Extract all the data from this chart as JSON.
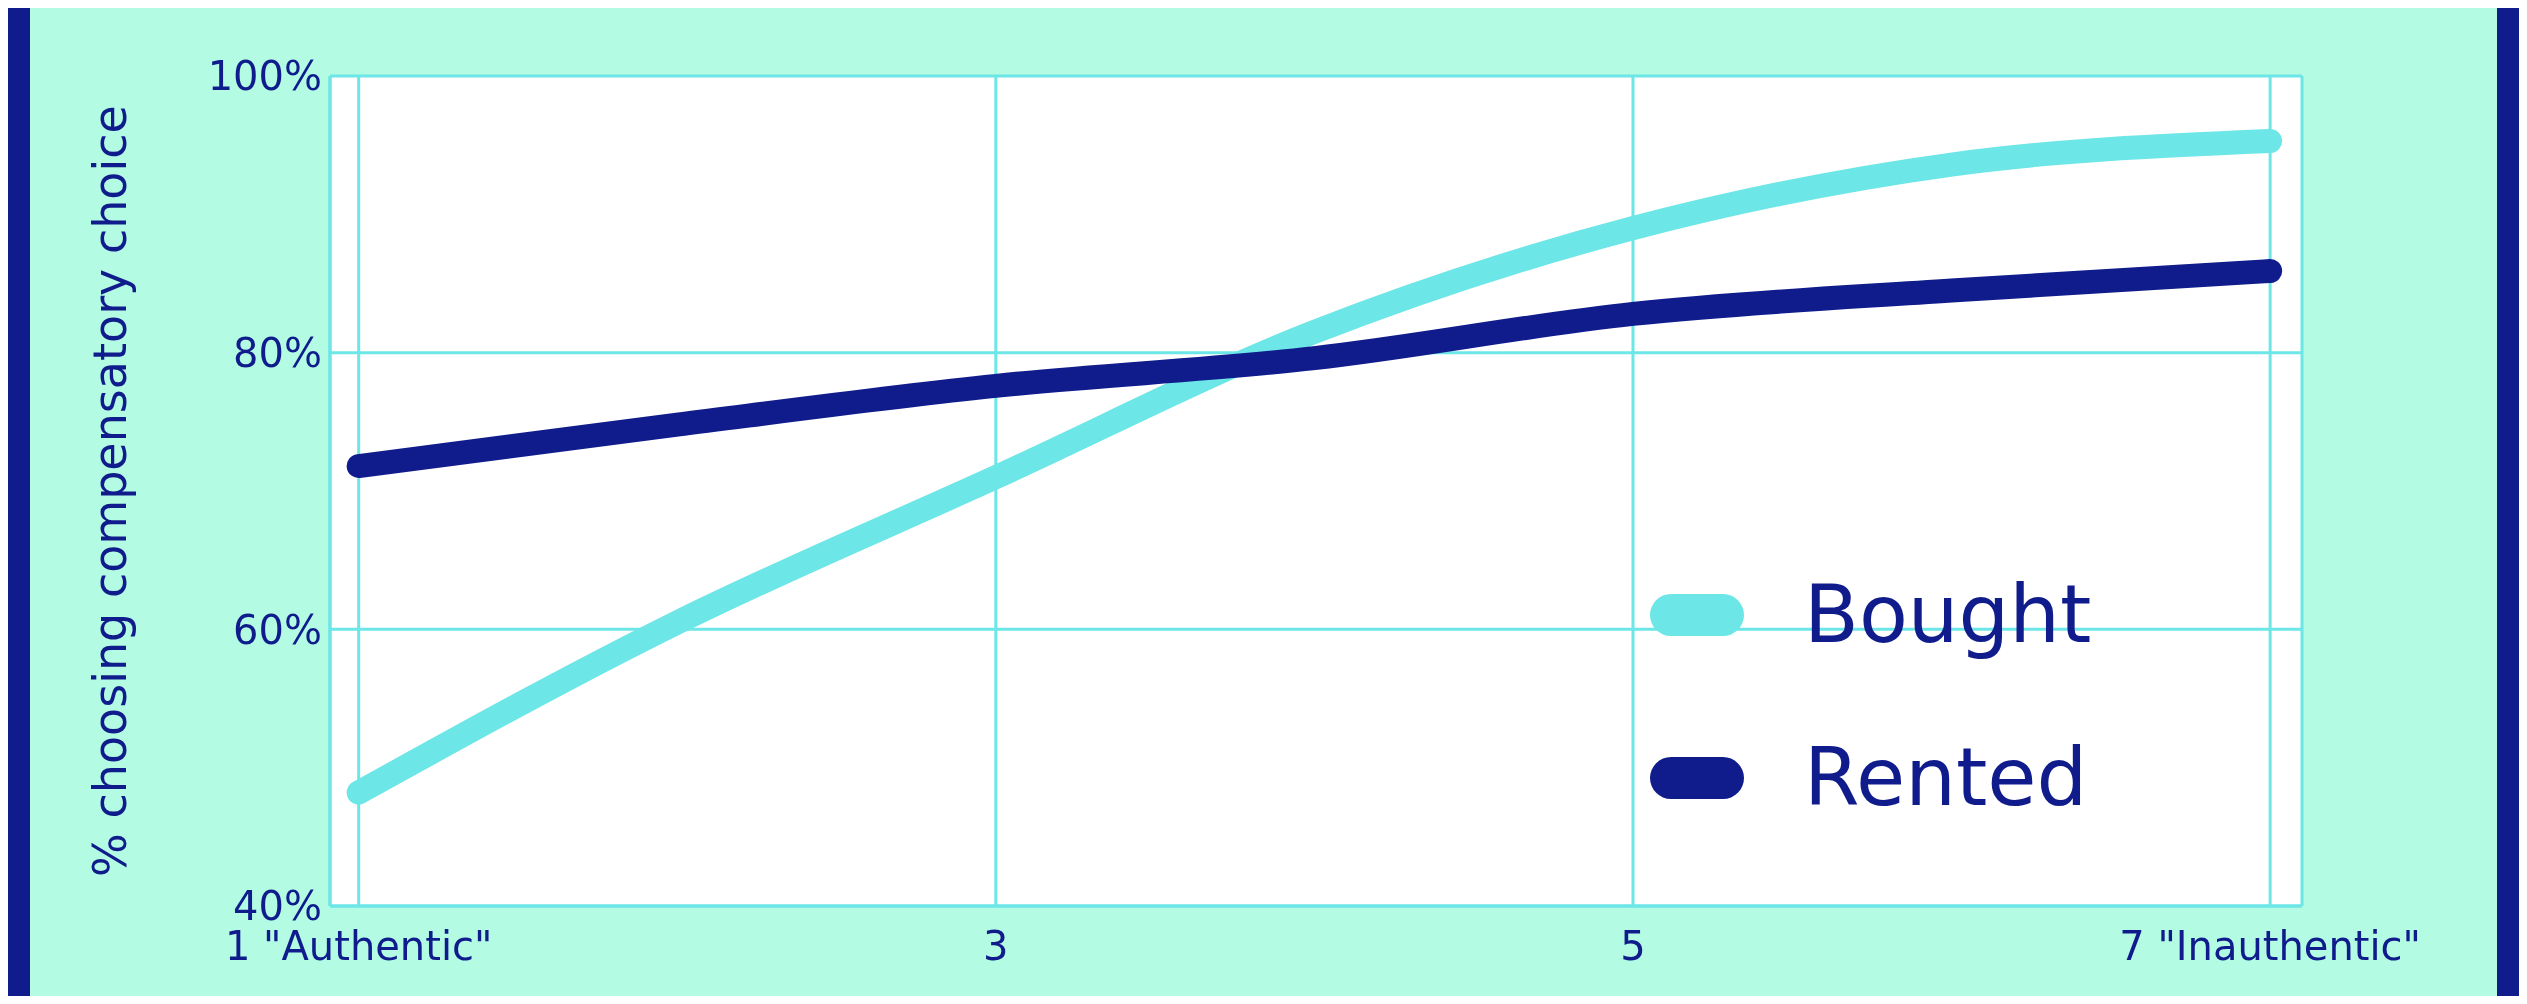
{
  "chart_data": {
    "type": "line",
    "ylabel": "% choosing compensatory choice",
    "x": [
      1,
      2,
      3,
      4,
      5,
      6,
      7
    ],
    "series": [
      {
        "name": "Bought",
        "color": "#6ce6e6",
        "values": [
          48.2,
          60.5,
          71,
          81.5,
          89,
          93.6,
          95.3
        ]
      },
      {
        "name": "Rented",
        "color": "#101c8c",
        "values": [
          71.8,
          74.8,
          77.6,
          79.6,
          82.8,
          84.5,
          85.9
        ]
      }
    ],
    "xlim": [
      0.91,
      7.1
    ],
    "xticks": [
      {
        "value": 1,
        "label": "1 \"Authentic\""
      },
      3,
      5,
      {
        "value": 7,
        "label": "7 \"Inauthentic\""
      }
    ],
    "ylim": [
      40,
      100
    ],
    "yticks": [
      {
        "value": 40,
        "label": "40%"
      },
      {
        "value": 60,
        "label": "60%"
      },
      {
        "value": 80,
        "label": "80%"
      },
      {
        "value": 100,
        "label": "100%"
      }
    ],
    "grid": true,
    "legend": "bottom right",
    "marker": "none",
    "line_style": "solid"
  }
}
